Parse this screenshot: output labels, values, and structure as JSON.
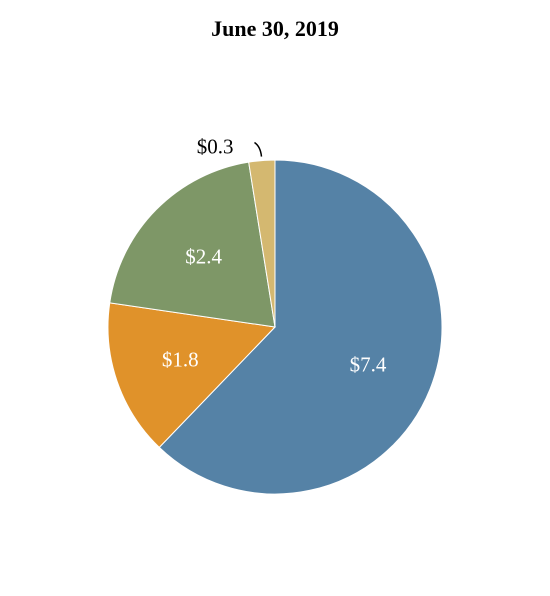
{
  "chart_data": {
    "type": "pie",
    "title": "June 30, 2019",
    "slices": [
      {
        "label": "$7.4",
        "value": 7.4,
        "color": "#5582a6",
        "label_color": "#ffffff"
      },
      {
        "label": "$1.8",
        "value": 1.8,
        "color": "#e0922a",
        "label_color": "#ffffff"
      },
      {
        "label": "$2.4",
        "value": 2.4,
        "color": "#7e9767",
        "label_color": "#ffffff"
      },
      {
        "label": "$0.3",
        "value": 0.3,
        "color": "#d4b870",
        "label_color": "#000000"
      }
    ],
    "direction": "clockwise",
    "start": "top"
  }
}
